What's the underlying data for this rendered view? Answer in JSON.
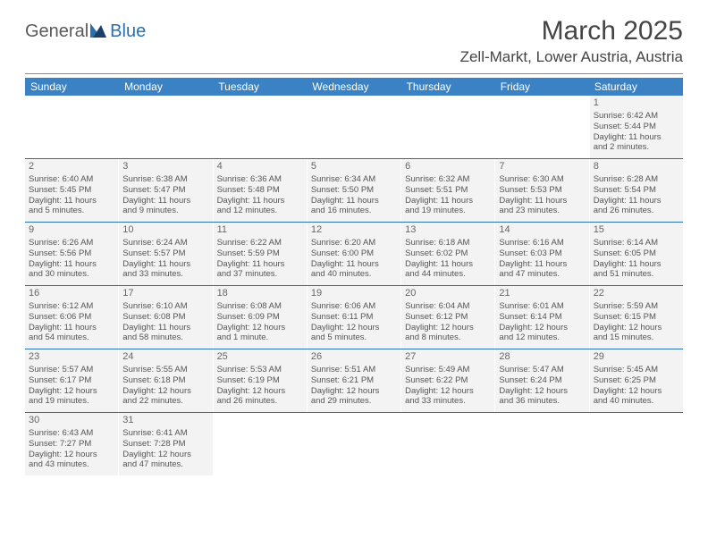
{
  "brand": {
    "part1": "General",
    "part2": "Blue"
  },
  "title": "March 2025",
  "location": "Zell-Markt, Lower Austria, Austria",
  "colors": {
    "header_bg": "#3b82c4",
    "header_text": "#ffffff",
    "cell_bg": "#f3f3f3",
    "week_divider": "#2a6fb0",
    "text": "#555555",
    "title_text": "#444444",
    "logo_gray": "#5a5a5a",
    "logo_blue": "#2a6fb0"
  },
  "typography": {
    "title_fontsize": 30,
    "location_fontsize": 17,
    "weekday_fontsize": 12,
    "daynum_fontsize": 11,
    "body_fontsize": 9.5
  },
  "weekdays": [
    "Sunday",
    "Monday",
    "Tuesday",
    "Wednesday",
    "Thursday",
    "Friday",
    "Saturday"
  ],
  "weeks": [
    [
      null,
      null,
      null,
      null,
      null,
      null,
      {
        "n": "1",
        "sr": "Sunrise: 6:42 AM",
        "ss": "Sunset: 5:44 PM",
        "d1": "Daylight: 11 hours",
        "d2": "and 2 minutes."
      }
    ],
    [
      {
        "n": "2",
        "sr": "Sunrise: 6:40 AM",
        "ss": "Sunset: 5:45 PM",
        "d1": "Daylight: 11 hours",
        "d2": "and 5 minutes."
      },
      {
        "n": "3",
        "sr": "Sunrise: 6:38 AM",
        "ss": "Sunset: 5:47 PM",
        "d1": "Daylight: 11 hours",
        "d2": "and 9 minutes."
      },
      {
        "n": "4",
        "sr": "Sunrise: 6:36 AM",
        "ss": "Sunset: 5:48 PM",
        "d1": "Daylight: 11 hours",
        "d2": "and 12 minutes."
      },
      {
        "n": "5",
        "sr": "Sunrise: 6:34 AM",
        "ss": "Sunset: 5:50 PM",
        "d1": "Daylight: 11 hours",
        "d2": "and 16 minutes."
      },
      {
        "n": "6",
        "sr": "Sunrise: 6:32 AM",
        "ss": "Sunset: 5:51 PM",
        "d1": "Daylight: 11 hours",
        "d2": "and 19 minutes."
      },
      {
        "n": "7",
        "sr": "Sunrise: 6:30 AM",
        "ss": "Sunset: 5:53 PM",
        "d1": "Daylight: 11 hours",
        "d2": "and 23 minutes."
      },
      {
        "n": "8",
        "sr": "Sunrise: 6:28 AM",
        "ss": "Sunset: 5:54 PM",
        "d1": "Daylight: 11 hours",
        "d2": "and 26 minutes."
      }
    ],
    [
      {
        "n": "9",
        "sr": "Sunrise: 6:26 AM",
        "ss": "Sunset: 5:56 PM",
        "d1": "Daylight: 11 hours",
        "d2": "and 30 minutes."
      },
      {
        "n": "10",
        "sr": "Sunrise: 6:24 AM",
        "ss": "Sunset: 5:57 PM",
        "d1": "Daylight: 11 hours",
        "d2": "and 33 minutes."
      },
      {
        "n": "11",
        "sr": "Sunrise: 6:22 AM",
        "ss": "Sunset: 5:59 PM",
        "d1": "Daylight: 11 hours",
        "d2": "and 37 minutes."
      },
      {
        "n": "12",
        "sr": "Sunrise: 6:20 AM",
        "ss": "Sunset: 6:00 PM",
        "d1": "Daylight: 11 hours",
        "d2": "and 40 minutes."
      },
      {
        "n": "13",
        "sr": "Sunrise: 6:18 AM",
        "ss": "Sunset: 6:02 PM",
        "d1": "Daylight: 11 hours",
        "d2": "and 44 minutes."
      },
      {
        "n": "14",
        "sr": "Sunrise: 6:16 AM",
        "ss": "Sunset: 6:03 PM",
        "d1": "Daylight: 11 hours",
        "d2": "and 47 minutes."
      },
      {
        "n": "15",
        "sr": "Sunrise: 6:14 AM",
        "ss": "Sunset: 6:05 PM",
        "d1": "Daylight: 11 hours",
        "d2": "and 51 minutes."
      }
    ],
    [
      {
        "n": "16",
        "sr": "Sunrise: 6:12 AM",
        "ss": "Sunset: 6:06 PM",
        "d1": "Daylight: 11 hours",
        "d2": "and 54 minutes."
      },
      {
        "n": "17",
        "sr": "Sunrise: 6:10 AM",
        "ss": "Sunset: 6:08 PM",
        "d1": "Daylight: 11 hours",
        "d2": "and 58 minutes."
      },
      {
        "n": "18",
        "sr": "Sunrise: 6:08 AM",
        "ss": "Sunset: 6:09 PM",
        "d1": "Daylight: 12 hours",
        "d2": "and 1 minute."
      },
      {
        "n": "19",
        "sr": "Sunrise: 6:06 AM",
        "ss": "Sunset: 6:11 PM",
        "d1": "Daylight: 12 hours",
        "d2": "and 5 minutes."
      },
      {
        "n": "20",
        "sr": "Sunrise: 6:04 AM",
        "ss": "Sunset: 6:12 PM",
        "d1": "Daylight: 12 hours",
        "d2": "and 8 minutes."
      },
      {
        "n": "21",
        "sr": "Sunrise: 6:01 AM",
        "ss": "Sunset: 6:14 PM",
        "d1": "Daylight: 12 hours",
        "d2": "and 12 minutes."
      },
      {
        "n": "22",
        "sr": "Sunrise: 5:59 AM",
        "ss": "Sunset: 6:15 PM",
        "d1": "Daylight: 12 hours",
        "d2": "and 15 minutes."
      }
    ],
    [
      {
        "n": "23",
        "sr": "Sunrise: 5:57 AM",
        "ss": "Sunset: 6:17 PM",
        "d1": "Daylight: 12 hours",
        "d2": "and 19 minutes."
      },
      {
        "n": "24",
        "sr": "Sunrise: 5:55 AM",
        "ss": "Sunset: 6:18 PM",
        "d1": "Daylight: 12 hours",
        "d2": "and 22 minutes."
      },
      {
        "n": "25",
        "sr": "Sunrise: 5:53 AM",
        "ss": "Sunset: 6:19 PM",
        "d1": "Daylight: 12 hours",
        "d2": "and 26 minutes."
      },
      {
        "n": "26",
        "sr": "Sunrise: 5:51 AM",
        "ss": "Sunset: 6:21 PM",
        "d1": "Daylight: 12 hours",
        "d2": "and 29 minutes."
      },
      {
        "n": "27",
        "sr": "Sunrise: 5:49 AM",
        "ss": "Sunset: 6:22 PM",
        "d1": "Daylight: 12 hours",
        "d2": "and 33 minutes."
      },
      {
        "n": "28",
        "sr": "Sunrise: 5:47 AM",
        "ss": "Sunset: 6:24 PM",
        "d1": "Daylight: 12 hours",
        "d2": "and 36 minutes."
      },
      {
        "n": "29",
        "sr": "Sunrise: 5:45 AM",
        "ss": "Sunset: 6:25 PM",
        "d1": "Daylight: 12 hours",
        "d2": "and 40 minutes."
      }
    ],
    [
      {
        "n": "30",
        "sr": "Sunrise: 6:43 AM",
        "ss": "Sunset: 7:27 PM",
        "d1": "Daylight: 12 hours",
        "d2": "and 43 minutes."
      },
      {
        "n": "31",
        "sr": "Sunrise: 6:41 AM",
        "ss": "Sunset: 7:28 PM",
        "d1": "Daylight: 12 hours",
        "d2": "and 47 minutes."
      },
      null,
      null,
      null,
      null,
      null
    ]
  ]
}
